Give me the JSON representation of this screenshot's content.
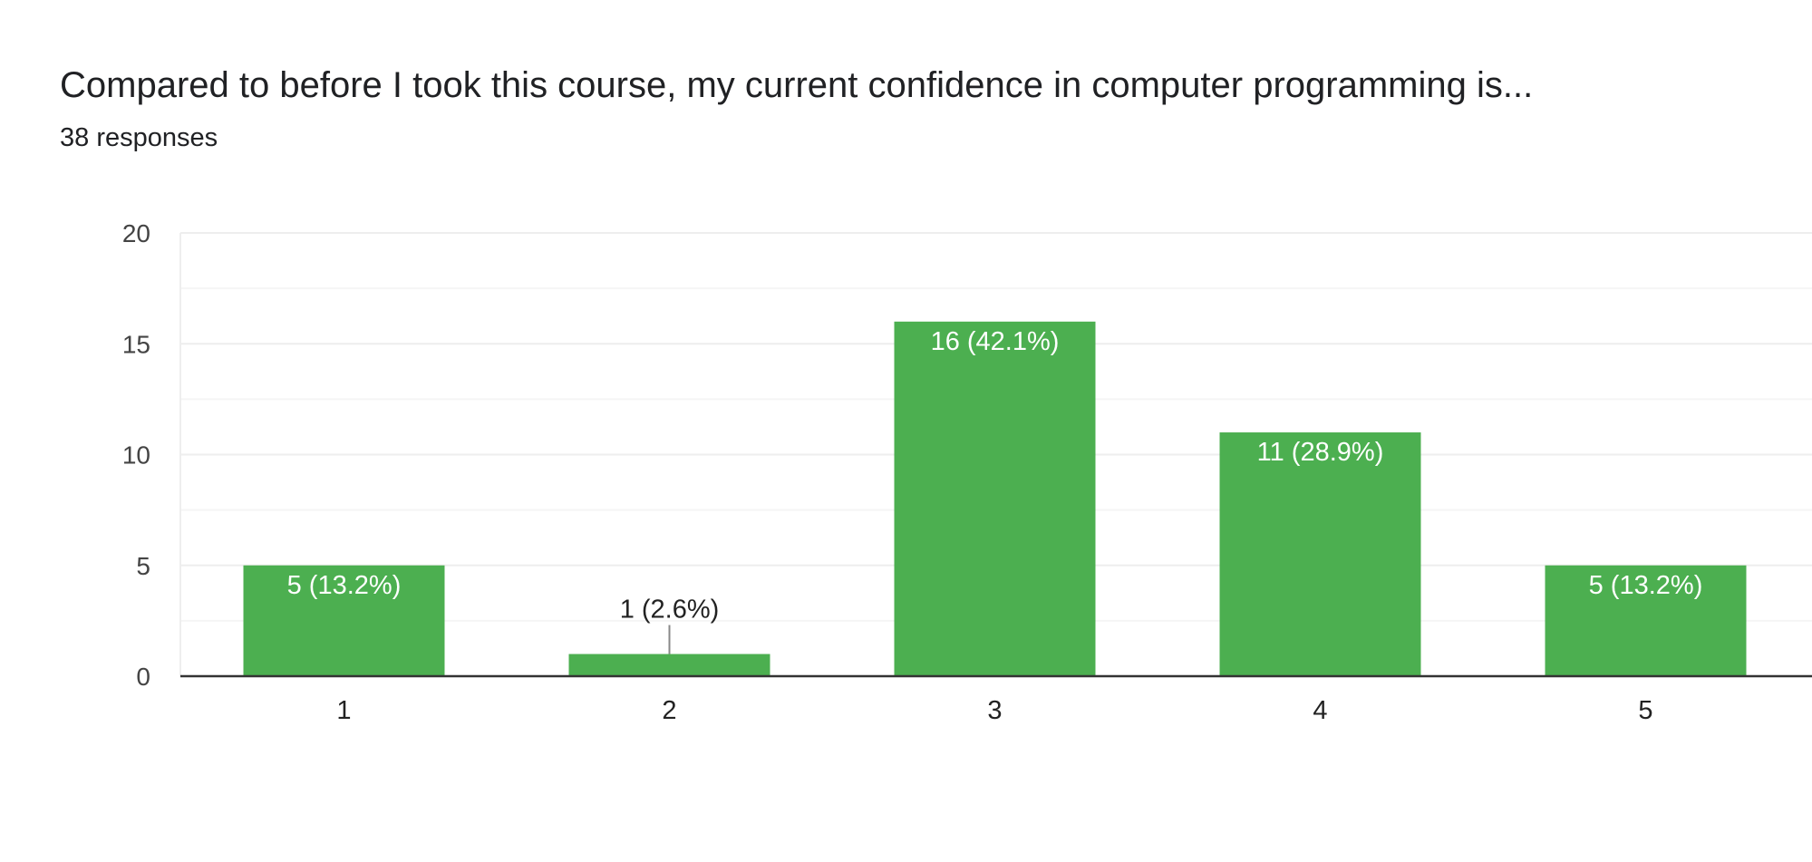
{
  "header": {
    "title": "Compared to before I took this course, my current confidence in computer programming is...",
    "responses": "38 responses"
  },
  "colors": {
    "bar": "#4caf50",
    "label_inside": "#ffffff",
    "label_outside": "#222222",
    "grid_major": "#eeeeee",
    "grid_minor": "#f5f5f5",
    "axis": "#333333"
  },
  "chart_data": {
    "type": "bar",
    "title": "Compared to before I took this course, my current confidence in computer programming is...",
    "subtitle": "38 responses",
    "categories": [
      "1",
      "2",
      "3",
      "4",
      "5"
    ],
    "values": [
      5,
      1,
      16,
      11,
      5
    ],
    "data_labels": [
      "5 (13.2%)",
      "1 (2.6%)",
      "16 (42.1%)",
      "11 (28.9%)",
      "5 (13.2%)"
    ],
    "xlabel": "",
    "ylabel": "",
    "ylim": [
      0,
      20
    ],
    "yticks": [
      "0",
      "5",
      "10",
      "15",
      "20"
    ],
    "grid": true,
    "legend": "none"
  }
}
